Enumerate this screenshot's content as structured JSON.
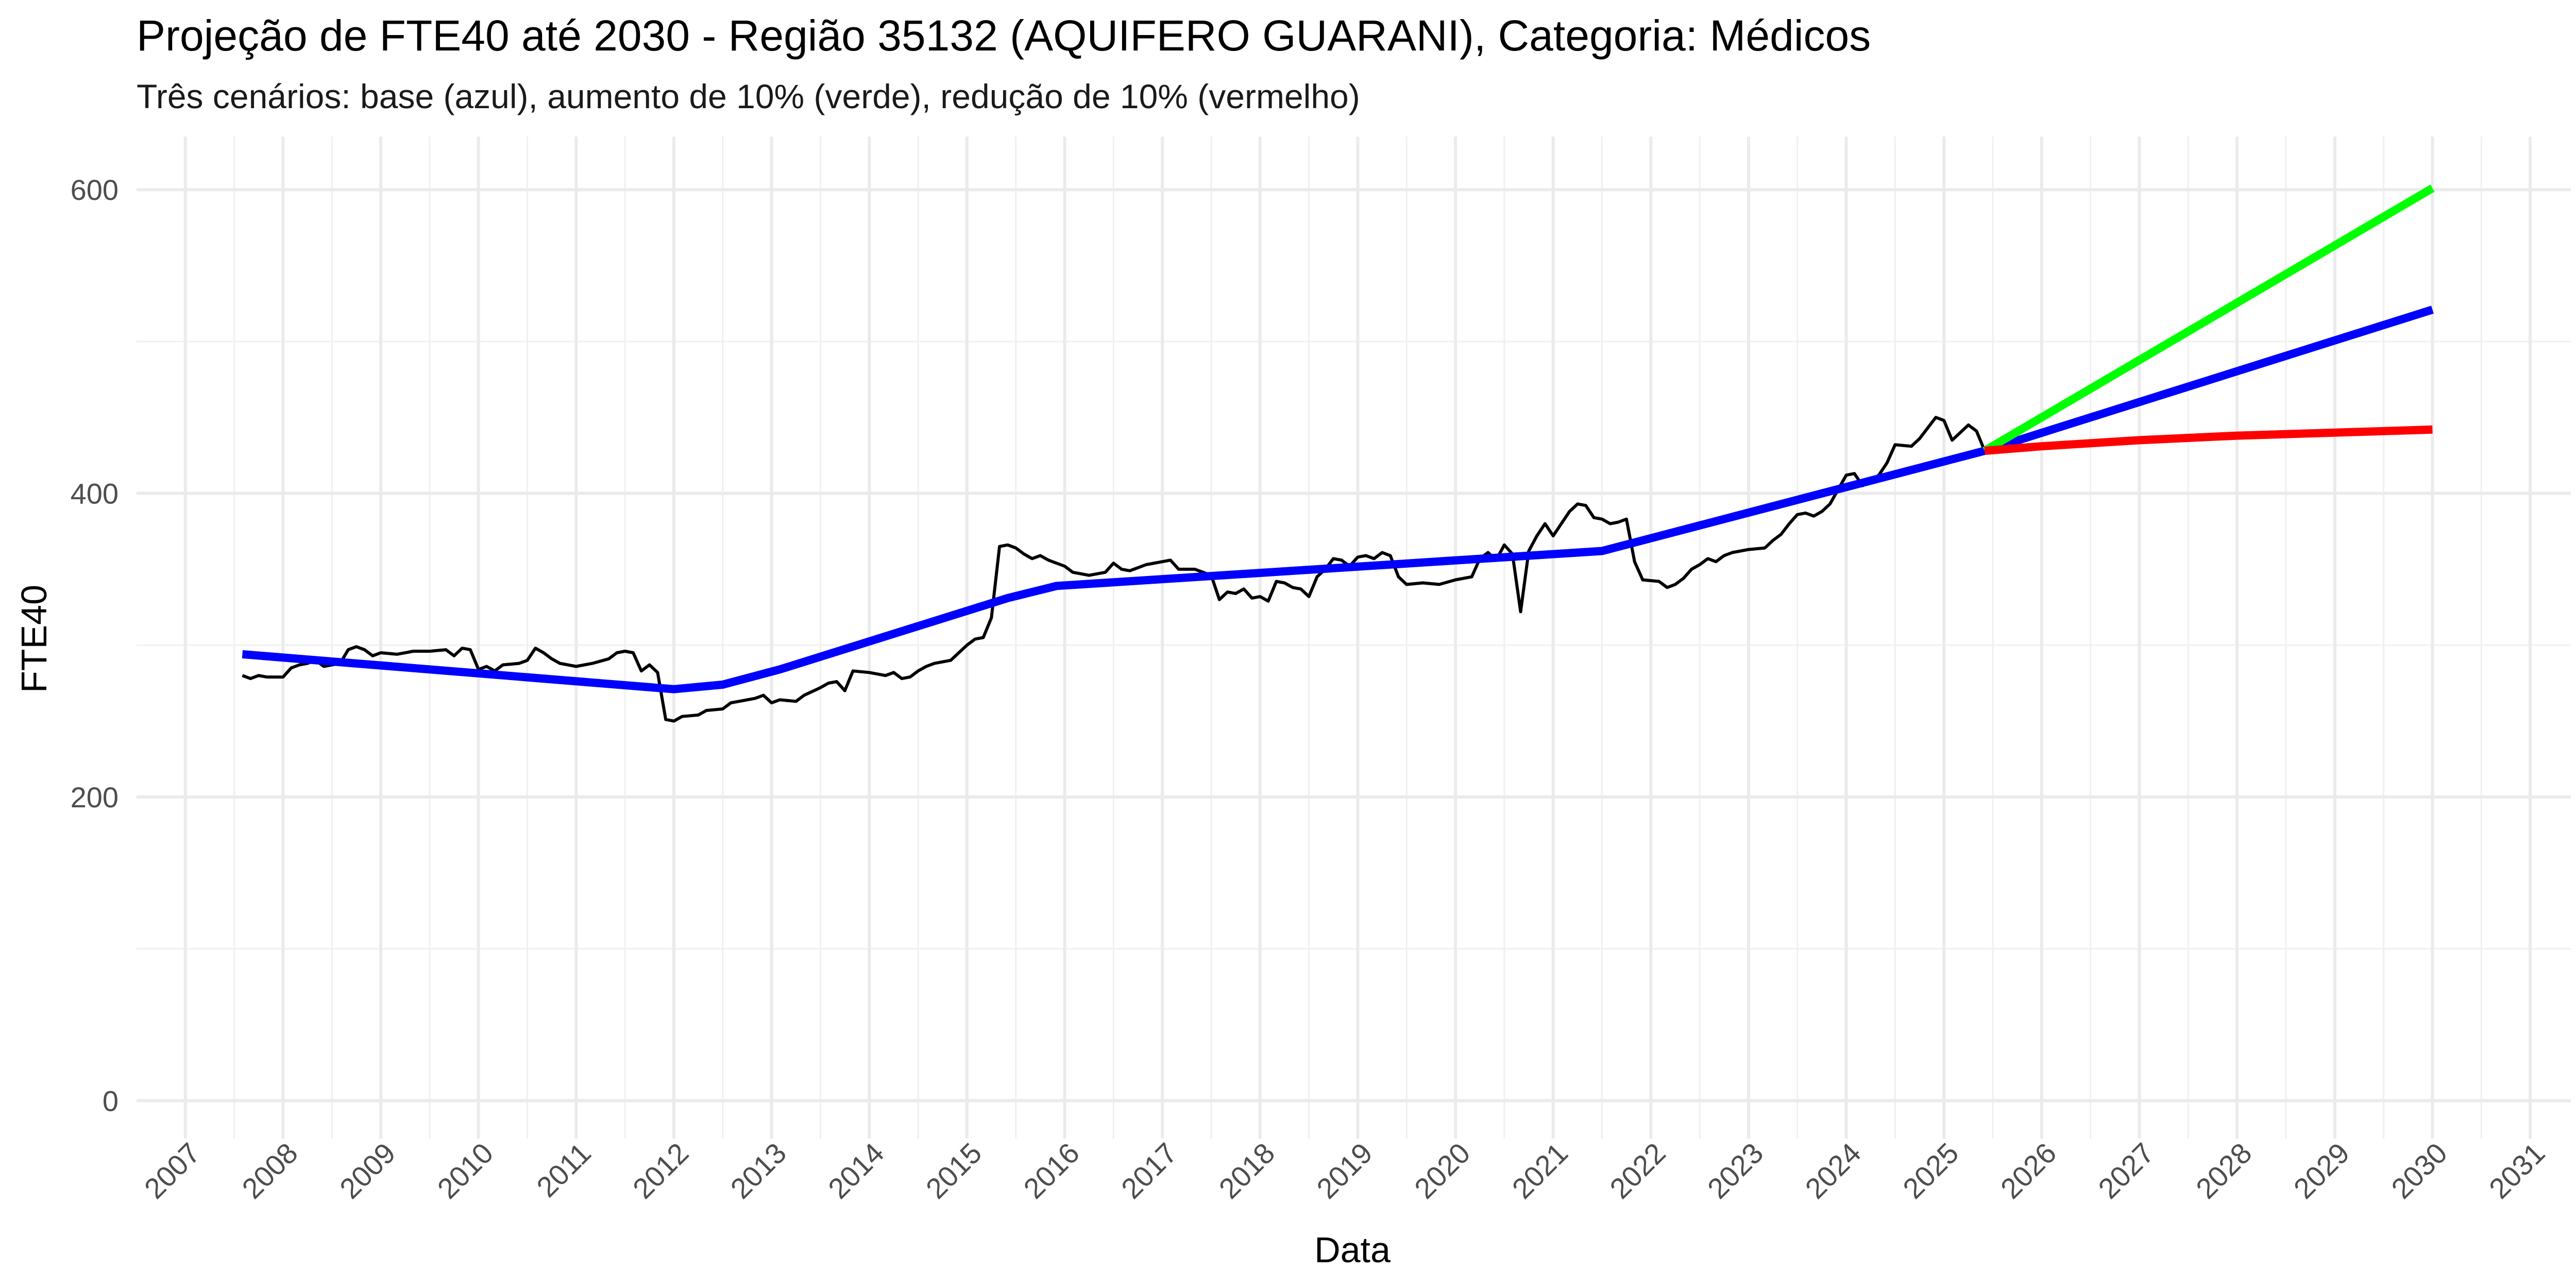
{
  "chart_data": {
    "type": "line",
    "title": "Projeção de FTE40 até 2030 - Região 35132 (AQUIFERO GUARANI), Categoria: Médicos",
    "subtitle": "Três cenários: base (azul), aumento de 10% (verde), redução de 10% (vermelho)",
    "xlabel": "Data",
    "ylabel": "FTE40",
    "xlim": [
      "2006-07",
      "2031-06"
    ],
    "ylim": [
      -25,
      635
    ],
    "x_ticks": [
      "2007",
      "2008",
      "2009",
      "2010",
      "2011",
      "2012",
      "2013",
      "2014",
      "2015",
      "2016",
      "2017",
      "2018",
      "2019",
      "2020",
      "2021",
      "2022",
      "2023",
      "2024",
      "2025",
      "2026",
      "2027",
      "2028",
      "2029",
      "2030",
      "2031"
    ],
    "y_ticks": [
      "0",
      "200",
      "400",
      "600"
    ],
    "grid": true,
    "series": [
      {
        "color": "#000000",
        "points": [
          [
            "2007-08",
            280
          ],
          [
            "2007-09",
            278
          ],
          [
            "2007-10",
            280
          ],
          [
            "2007-11",
            279
          ],
          [
            "2008-01",
            279
          ],
          [
            "2008-02",
            285
          ],
          [
            "2008-03",
            287
          ],
          [
            "2008-04",
            288
          ],
          [
            "2008-05",
            290
          ],
          [
            "2008-06",
            286
          ],
          [
            "2008-08",
            288
          ],
          [
            "2008-09",
            297
          ],
          [
            "2008-10",
            299
          ],
          [
            "2008-11",
            297
          ],
          [
            "2008-12",
            293
          ],
          [
            "2009-01",
            295
          ],
          [
            "2009-03",
            294
          ],
          [
            "2009-05",
            296
          ],
          [
            "2009-07",
            296
          ],
          [
            "2009-09",
            297
          ],
          [
            "2009-10",
            293
          ],
          [
            "2009-11",
            298
          ],
          [
            "2009-12",
            297
          ],
          [
            "2010-01",
            284
          ],
          [
            "2010-02",
            286
          ],
          [
            "2010-03",
            283
          ],
          [
            "2010-04",
            287
          ],
          [
            "2010-06",
            288
          ],
          [
            "2010-07",
            290
          ],
          [
            "2010-08",
            298
          ],
          [
            "2010-09",
            295
          ],
          [
            "2010-10",
            291
          ],
          [
            "2010-11",
            288
          ],
          [
            "2011-01",
            286
          ],
          [
            "2011-02",
            287
          ],
          [
            "2011-03",
            288
          ],
          [
            "2011-05",
            291
          ],
          [
            "2011-06",
            295
          ],
          [
            "2011-07",
            296
          ],
          [
            "2011-08",
            295
          ],
          [
            "2011-09",
            283
          ],
          [
            "2011-10",
            287
          ],
          [
            "2011-11",
            282
          ],
          [
            "2011-12",
            251
          ],
          [
            "2012-01",
            250
          ],
          [
            "2012-02",
            253
          ],
          [
            "2012-04",
            254
          ],
          [
            "2012-05",
            257
          ],
          [
            "2012-07",
            258
          ],
          [
            "2012-08",
            262
          ],
          [
            "2012-09",
            263
          ],
          [
            "2012-11",
            265
          ],
          [
            "2012-12",
            267
          ],
          [
            "2013-01",
            262
          ],
          [
            "2013-02",
            264
          ],
          [
            "2013-04",
            263
          ],
          [
            "2013-05",
            267
          ],
          [
            "2013-07",
            272
          ],
          [
            "2013-08",
            275
          ],
          [
            "2013-09",
            276
          ],
          [
            "2013-10",
            270
          ],
          [
            "2013-11",
            283
          ],
          [
            "2014-01",
            282
          ],
          [
            "2014-03",
            280
          ],
          [
            "2014-04",
            282
          ],
          [
            "2014-05",
            278
          ],
          [
            "2014-06",
            279
          ],
          [
            "2014-07",
            283
          ],
          [
            "2014-08",
            286
          ],
          [
            "2014-09",
            288
          ],
          [
            "2014-11",
            290
          ],
          [
            "2015-01",
            300
          ],
          [
            "2015-02",
            304
          ],
          [
            "2015-03",
            305
          ],
          [
            "2015-04",
            318
          ],
          [
            "2015-05",
            365
          ],
          [
            "2015-06",
            366
          ],
          [
            "2015-07",
            364
          ],
          [
            "2015-08",
            360
          ],
          [
            "2015-09",
            357
          ],
          [
            "2015-10",
            359
          ],
          [
            "2015-11",
            356
          ],
          [
            "2016-01",
            352
          ],
          [
            "2016-02",
            348
          ],
          [
            "2016-04",
            346
          ],
          [
            "2016-06",
            348
          ],
          [
            "2016-07",
            354
          ],
          [
            "2016-08",
            350
          ],
          [
            "2016-09",
            349
          ],
          [
            "2016-10",
            351
          ],
          [
            "2016-11",
            353
          ],
          [
            "2017-01",
            355
          ],
          [
            "2017-02",
            356
          ],
          [
            "2017-03",
            350
          ],
          [
            "2017-05",
            350
          ],
          [
            "2017-07",
            346
          ],
          [
            "2017-08",
            330
          ],
          [
            "2017-09",
            335
          ],
          [
            "2017-10",
            334
          ],
          [
            "2017-11",
            337
          ],
          [
            "2017-12",
            331
          ],
          [
            "2018-01",
            332
          ],
          [
            "2018-02",
            329
          ],
          [
            "2018-03",
            342
          ],
          [
            "2018-04",
            341
          ],
          [
            "2018-05",
            338
          ],
          [
            "2018-06",
            337
          ],
          [
            "2018-07",
            332
          ],
          [
            "2018-08",
            345
          ],
          [
            "2018-09",
            350
          ],
          [
            "2018-10",
            357
          ],
          [
            "2018-11",
            356
          ],
          [
            "2018-12",
            352
          ],
          [
            "2019-01",
            358
          ],
          [
            "2019-02",
            359
          ],
          [
            "2019-03",
            357
          ],
          [
            "2019-04",
            361
          ],
          [
            "2019-05",
            359
          ],
          [
            "2019-06",
            345
          ],
          [
            "2019-07",
            340
          ],
          [
            "2019-09",
            341
          ],
          [
            "2019-11",
            340
          ],
          [
            "2020-01",
            343
          ],
          [
            "2020-03",
            345
          ],
          [
            "2020-04",
            357
          ],
          [
            "2020-05",
            361
          ],
          [
            "2020-06",
            356
          ],
          [
            "2020-07",
            366
          ],
          [
            "2020-08",
            360
          ],
          [
            "2020-09",
            322
          ],
          [
            "2020-10",
            362
          ],
          [
            "2020-11",
            372
          ],
          [
            "2020-12",
            380
          ],
          [
            "2021-01",
            372
          ],
          [
            "2021-02",
            380
          ],
          [
            "2021-03",
            388
          ],
          [
            "2021-04",
            393
          ],
          [
            "2021-05",
            392
          ],
          [
            "2021-06",
            384
          ],
          [
            "2021-07",
            383
          ],
          [
            "2021-08",
            380
          ],
          [
            "2021-09",
            381
          ],
          [
            "2021-10",
            383
          ],
          [
            "2021-11",
            355
          ],
          [
            "2021-12",
            343
          ],
          [
            "2022-02",
            342
          ],
          [
            "2022-03",
            338
          ],
          [
            "2022-04",
            340
          ],
          [
            "2022-05",
            344
          ],
          [
            "2022-06",
            350
          ],
          [
            "2022-07",
            353
          ],
          [
            "2022-08",
            357
          ],
          [
            "2022-09",
            355
          ],
          [
            "2022-10",
            359
          ],
          [
            "2022-11",
            361
          ],
          [
            "2023-01",
            363
          ],
          [
            "2023-03",
            364
          ],
          [
            "2023-04",
            369
          ],
          [
            "2023-05",
            373
          ],
          [
            "2023-06",
            380
          ],
          [
            "2023-07",
            386
          ],
          [
            "2023-08",
            387
          ],
          [
            "2023-09",
            385
          ],
          [
            "2023-10",
            388
          ],
          [
            "2023-11",
            393
          ],
          [
            "2024-01",
            412
          ],
          [
            "2024-02",
            413
          ],
          [
            "2024-03",
            405
          ],
          [
            "2024-04",
            408
          ],
          [
            "2024-05",
            412
          ],
          [
            "2024-06",
            420
          ],
          [
            "2024-07",
            432
          ],
          [
            "2024-09",
            431
          ],
          [
            "2024-10",
            436
          ],
          [
            "2024-11",
            443
          ],
          [
            "2024-12",
            450
          ],
          [
            "2025-01",
            448
          ],
          [
            "2025-02",
            435
          ],
          [
            "2025-03",
            440
          ],
          [
            "2025-04",
            445
          ],
          [
            "2025-05",
            441
          ],
          [
            "2025-06",
            428
          ]
        ]
      },
      {
        "color": "#0000ff",
        "points": [
          [
            "2007-08",
            294
          ],
          [
            "2012-01",
            271
          ],
          [
            "2012-07",
            274
          ],
          [
            "2013-02",
            284
          ],
          [
            "2015-06",
            331
          ],
          [
            "2015-12",
            339
          ],
          [
            "2021-07",
            362
          ],
          [
            "2025-06",
            428
          ],
          [
            "2030-01",
            521
          ]
        ]
      },
      {
        "color": "#00ff00",
        "points": [
          [
            "2025-06",
            428
          ],
          [
            "2030-01",
            601
          ]
        ]
      },
      {
        "color": "#ff0000",
        "points": [
          [
            "2025-06",
            428
          ],
          [
            "2026-01",
            431
          ],
          [
            "2027-01",
            435
          ],
          [
            "2028-01",
            438
          ],
          [
            "2029-01",
            440
          ],
          [
            "2030-01",
            442
          ]
        ]
      }
    ]
  }
}
